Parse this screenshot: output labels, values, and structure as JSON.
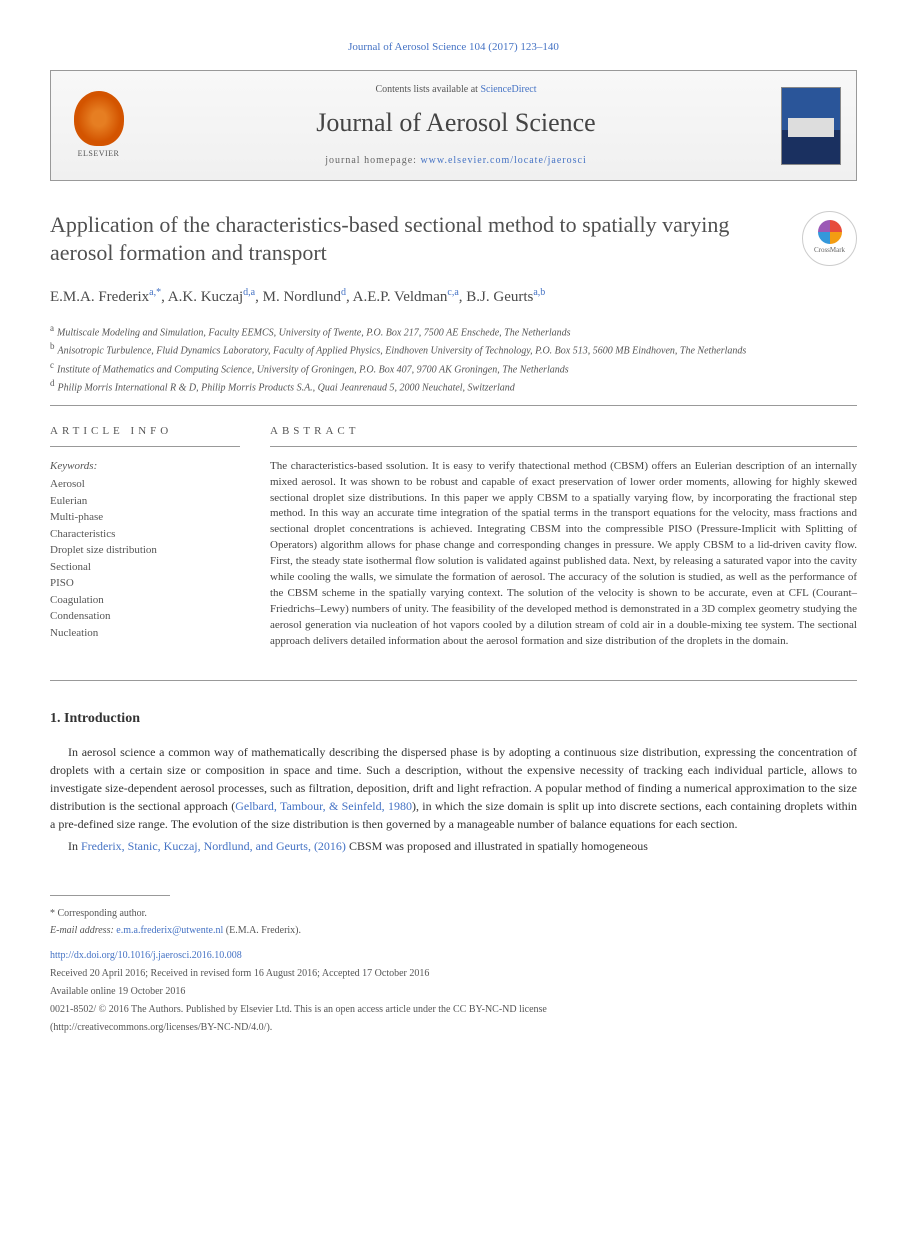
{
  "header": {
    "citation": "Journal of Aerosol Science 104 (2017) 123–140",
    "contents_prefix": "Contents lists available at ",
    "contents_link": "ScienceDirect",
    "journal_name": "Journal of Aerosol Science",
    "homepage_label": "journal homepage: ",
    "homepage_url": "www.elsevier.com/locate/jaerosci",
    "elsevier_label": "ELSEVIER",
    "cover_title": "Journal of Aerosol Science"
  },
  "article": {
    "title": "Application of the characteristics-based sectional method to spatially varying aerosol formation and transport",
    "crossmark_label": "CrossMark"
  },
  "authors": {
    "list": "E.M.A. Frederix",
    "a1_sup": "a,*",
    "a2": ", A.K. Kuczaj",
    "a2_sup": "d,a",
    "a3": ", M. Nordlund",
    "a3_sup": "d",
    "a4": ", A.E.P. Veldman",
    "a4_sup": "c,a",
    "a5": ", B.J. Geurts",
    "a5_sup": "a,b"
  },
  "affiliations": [
    {
      "sup": "a",
      "text": "Multiscale Modeling and Simulation, Faculty EEMCS, University of Twente, P.O. Box 217, 7500 AE Enschede, The Netherlands"
    },
    {
      "sup": "b",
      "text": "Anisotropic Turbulence, Fluid Dynamics Laboratory, Faculty of Applied Physics, Eindhoven University of Technology, P.O. Box 513, 5600 MB Eindhoven, The Netherlands"
    },
    {
      "sup": "c",
      "text": "Institute of Mathematics and Computing Science, University of Groningen, P.O. Box 407, 9700 AK Groningen, The Netherlands"
    },
    {
      "sup": "d",
      "text": "Philip Morris International R & D, Philip Morris Products S.A., Quai Jeanrenaud 5, 2000 Neuchatel, Switzerland"
    }
  ],
  "info": {
    "header": "ARTICLE INFO",
    "keywords_label": "Keywords:",
    "keywords": [
      "Aerosol",
      "Eulerian",
      "Multi-phase",
      "Characteristics",
      "Droplet size distribution",
      "Sectional",
      "PISO",
      "Coagulation",
      "Condensation",
      "Nucleation"
    ]
  },
  "abstract": {
    "header": "ABSTRACT",
    "text": "The characteristics-based ssolution. It is easy to verify thatectional method (CBSM) offers an Eulerian description of an internally mixed aerosol. It was shown to be robust and capable of exact preservation of lower order moments, allowing for highly skewed sectional droplet size distributions. In this paper we apply CBSM to a spatially varying flow, by incorporating the fractional step method. In this way an accurate time integration of the spatial terms in the transport equations for the velocity, mass fractions and sectional droplet concentrations is achieved. Integrating CBSM into the compressible PISO (Pressure-Implicit with Splitting of Operators) algorithm allows for phase change and corresponding changes in pressure. We apply CBSM to a lid-driven cavity flow. First, the steady state isothermal flow solution is validated against published data. Next, by releasing a saturated vapor into the cavity while cooling the walls, we simulate the formation of aerosol. The accuracy of the solution is studied, as well as the performance of the CBSM scheme in the spatially varying context. The solution of the velocity is shown to be accurate, even at CFL (Courant–Friedrichs–Lewy) numbers of unity. The feasibility of the developed method is demonstrated in a 3D complex geometry studying the aerosol generation via nucleation of hot vapors cooled by a dilution stream of cold air in a double-mixing tee system. The sectional approach delivers detailed information about the aerosol formation and size distribution of the droplets in the domain."
  },
  "intro": {
    "header": "1. Introduction",
    "p1_a": "In aerosol science a common way of mathematically describing the dispersed phase is by adopting a continuous size distribution, expressing the concentration of droplets with a certain size or composition in space and time. Such a description, without the expensive necessity of tracking each individual particle, allows to investigate size-dependent aerosol processes, such as filtration, deposition, drift and light refraction. A popular method of finding a numerical approximation to the size distribution is the sectional approach (",
    "p1_cite": "Gelbard, Tambour, & Seinfeld, 1980",
    "p1_b": "), in which the size domain is split up into discrete sections, each containing droplets within a pre-defined size range. The evolution of the size distribution is then governed by a manageable number of balance equations for each section.",
    "p2_a": "In ",
    "p2_cite": "Frederix, Stanic, Kuczaj, Nordlund, and Geurts, (2016)",
    "p2_b": " CBSM was proposed and illustrated in spatially homogeneous"
  },
  "footnotes": {
    "corr": "* Corresponding author.",
    "email_label": "E-mail address: ",
    "email": "e.m.a.frederix@utwente.nl",
    "email_name": " (E.M.A. Frederix).",
    "doi": "http://dx.doi.org/10.1016/j.jaerosci.2016.10.008",
    "received": "Received 20 April 2016; Received in revised form 16 August 2016; Accepted 17 October 2016",
    "available": "Available online 19 October 2016",
    "issn": "0021-8502/ © 2016 The Authors. Published by Elsevier Ltd. This is an open access article under the CC BY-NC-ND license",
    "license": "(http://creativecommons.org/licenses/BY-NC-ND/4.0/)."
  },
  "colors": {
    "link": "#4472c4",
    "text": "#333333",
    "muted": "#555555",
    "rule": "#999999"
  }
}
